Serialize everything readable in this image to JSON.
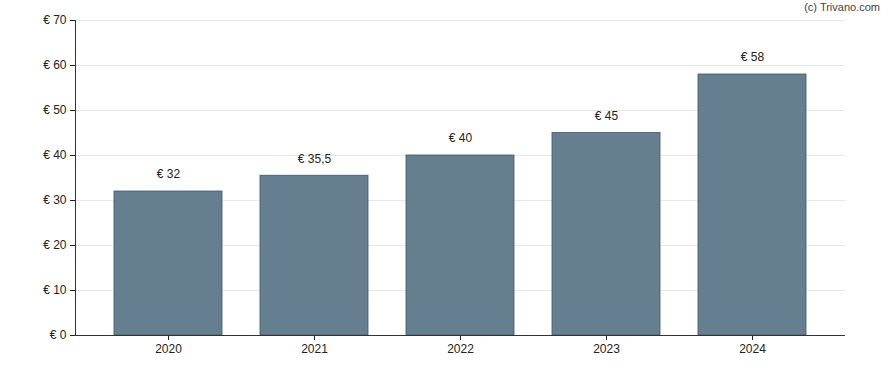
{
  "chart_data": {
    "type": "bar",
    "caption": "(c) Trivano.com",
    "categories": [
      "2020",
      "2021",
      "2022",
      "2023",
      "2024"
    ],
    "values": [
      32,
      35.5,
      40,
      45,
      58
    ],
    "value_labels": [
      "€ 32",
      "€ 35,5",
      "€ 40",
      "€ 45",
      "€ 58"
    ],
    "data_labels": true,
    "color": "#657f91",
    "ylim": [
      0,
      70
    ],
    "yticks": [
      {
        "value": 0,
        "label": "€ 0"
      },
      {
        "value": 10,
        "label": "€ 10"
      },
      {
        "value": 20,
        "label": "€ 20"
      },
      {
        "value": 30,
        "label": "€ 30"
      },
      {
        "value": 40,
        "label": "€ 40"
      },
      {
        "value": 50,
        "label": "€ 50"
      },
      {
        "value": 60,
        "label": "€ 60"
      },
      {
        "value": 70,
        "label": "€ 70"
      }
    ],
    "grid": true
  }
}
